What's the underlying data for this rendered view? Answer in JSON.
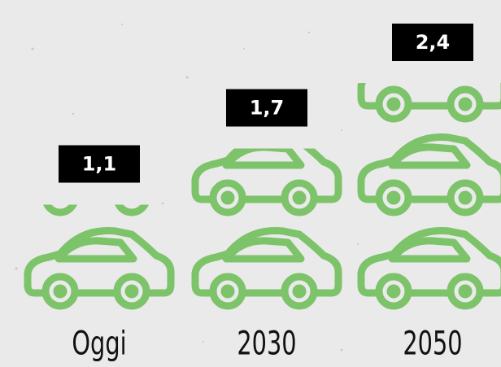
{
  "chart_data": {
    "type": "pictogram",
    "categories": [
      "Oggi",
      "2030",
      "2050"
    ],
    "values": [
      1.1,
      1.7,
      2.4
    ],
    "value_labels": [
      "1,1",
      "1,7",
      "2,4"
    ],
    "color": "#7dc36a"
  }
}
